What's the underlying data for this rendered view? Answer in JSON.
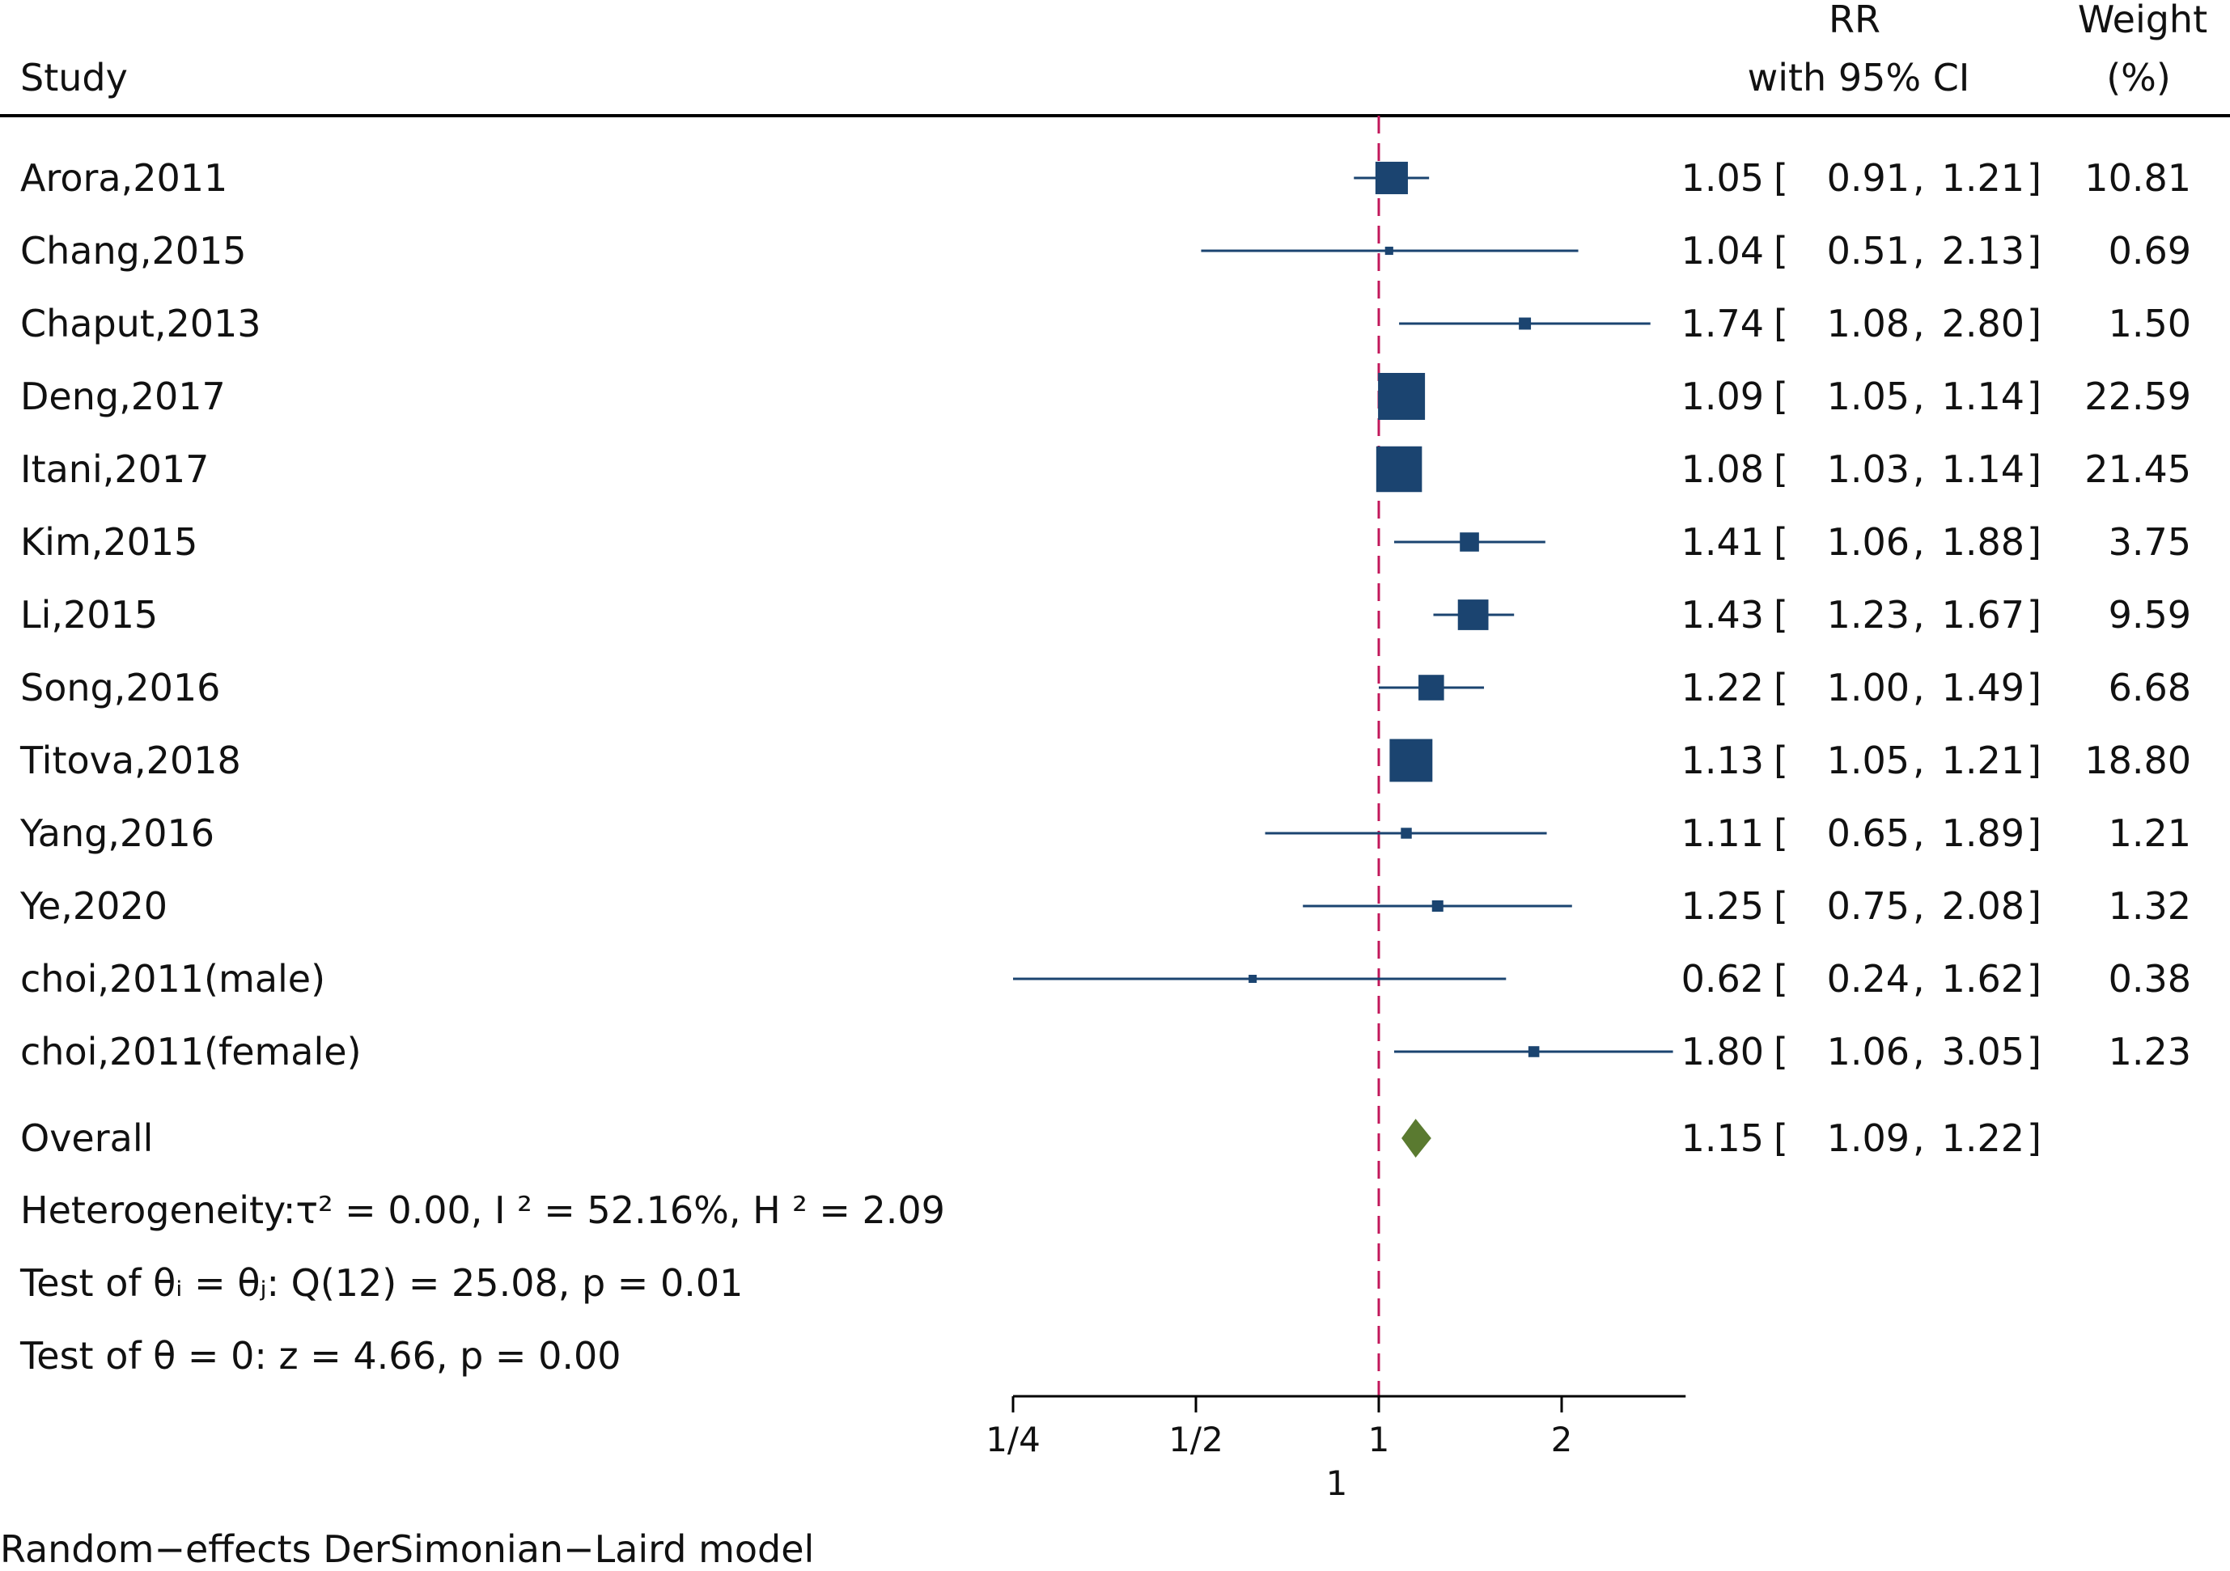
{
  "chart_data": {
    "type": "forest",
    "headers": {
      "study": "Study",
      "rr_line1": "RR",
      "rr_line2": "with 95% CI",
      "weight_line1": "Weight",
      "weight_line2": "(%)"
    },
    "x_scale": "log2",
    "x_range": [
      0.25,
      3.2
    ],
    "x_ticks": [
      {
        "value": 0.25,
        "label": "1/4"
      },
      {
        "value": 0.5,
        "label": "1/2"
      },
      {
        "value": 1,
        "label": "1"
      },
      {
        "value": 2,
        "label": "2"
      }
    ],
    "x_axis_title": "1",
    "reference_line": 1,
    "studies": [
      {
        "name": "Arora,2011",
        "rr": 1.05,
        "lo": 0.91,
        "hi": 1.21,
        "rr_text": "1.05",
        "lo_text": "0.91",
        "hi_text": "1.21",
        "weight": 10.81,
        "weight_text": "10.81"
      },
      {
        "name": "Chang,2015",
        "rr": 1.04,
        "lo": 0.51,
        "hi": 2.13,
        "rr_text": "1.04",
        "lo_text": "0.51",
        "hi_text": "2.13",
        "weight": 0.69,
        "weight_text": "0.69"
      },
      {
        "name": "Chaput,2013",
        "rr": 1.74,
        "lo": 1.08,
        "hi": 2.8,
        "rr_text": "1.74",
        "lo_text": "1.08",
        "hi_text": "2.80",
        "weight": 1.5,
        "weight_text": "1.50"
      },
      {
        "name": "Deng,2017",
        "rr": 1.09,
        "lo": 1.05,
        "hi": 1.14,
        "rr_text": "1.09",
        "lo_text": "1.05",
        "hi_text": "1.14",
        "weight": 22.59,
        "weight_text": "22.59"
      },
      {
        "name": "Itani,2017",
        "rr": 1.08,
        "lo": 1.03,
        "hi": 1.14,
        "rr_text": "1.08",
        "lo_text": "1.03",
        "hi_text": "1.14",
        "weight": 21.45,
        "weight_text": "21.45"
      },
      {
        "name": "Kim,2015",
        "rr": 1.41,
        "lo": 1.06,
        "hi": 1.88,
        "rr_text": "1.41",
        "lo_text": "1.06",
        "hi_text": "1.88",
        "weight": 3.75,
        "weight_text": "3.75"
      },
      {
        "name": "Li,2015",
        "rr": 1.43,
        "lo": 1.23,
        "hi": 1.67,
        "rr_text": "1.43",
        "lo_text": "1.23",
        "hi_text": "1.67",
        "weight": 9.59,
        "weight_text": "9.59"
      },
      {
        "name": "Song,2016",
        "rr": 1.22,
        "lo": 1.0,
        "hi": 1.49,
        "rr_text": "1.22",
        "lo_text": "1.00",
        "hi_text": "1.49",
        "weight": 6.68,
        "weight_text": "6.68"
      },
      {
        "name": "Titova,2018",
        "rr": 1.13,
        "lo": 1.05,
        "hi": 1.21,
        "rr_text": "1.13",
        "lo_text": "1.05",
        "hi_text": "1.21",
        "weight": 18.8,
        "weight_text": "18.80"
      },
      {
        "name": "Yang,2016",
        "rr": 1.11,
        "lo": 0.65,
        "hi": 1.89,
        "rr_text": "1.11",
        "lo_text": "0.65",
        "hi_text": "1.89",
        "weight": 1.21,
        "weight_text": "1.21"
      },
      {
        "name": "Ye,2020",
        "rr": 1.25,
        "lo": 0.75,
        "hi": 2.08,
        "rr_text": "1.25",
        "lo_text": "0.75",
        "hi_text": "2.08",
        "weight": 1.32,
        "weight_text": "1.32"
      },
      {
        "name": "choi,2011(male)",
        "rr": 0.62,
        "lo": 0.24,
        "hi": 1.62,
        "rr_text": "0.62",
        "lo_text": "0.24",
        "hi_text": "1.62",
        "weight": 0.38,
        "weight_text": "0.38"
      },
      {
        "name": "choi,2011(female)",
        "rr": 1.8,
        "lo": 1.06,
        "hi": 3.05,
        "rr_text": "1.80",
        "lo_text": "1.06",
        "hi_text": "3.05",
        "weight": 1.23,
        "weight_text": "1.23"
      }
    ],
    "overall": {
      "name": "Overall",
      "rr": 1.15,
      "lo": 1.09,
      "hi": 1.22,
      "rr_text": "1.15",
      "lo_text": "1.09",
      "hi_text": "1.22"
    },
    "stats": {
      "heterogeneity": "Heterogeneity:τ² = 0.00, I ² = 52.16%, H ² = 2.09",
      "test_homogeneity": "Test of θᵢ = θⱼ: Q(12) = 25.08, p = 0.01",
      "test_effect": "Test of θ = 0: z = 4.66, p = 0.00"
    },
    "footer": "Random−effects DerSimonian−Laird model",
    "colors": {
      "marker": "#1b4470",
      "diamond": "#5a7a30",
      "reference_line": "#c2185b",
      "text": "#111111",
      "rule": "#000000"
    }
  }
}
